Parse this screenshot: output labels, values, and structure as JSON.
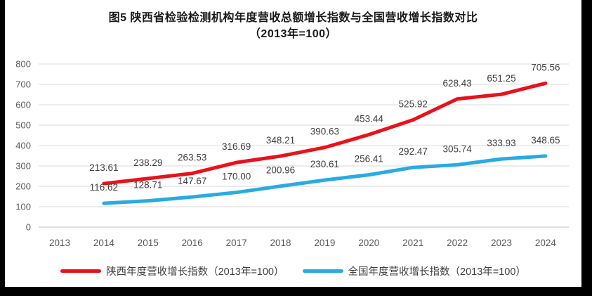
{
  "title": {
    "line1": "图5  陕西省检验检测机构年度营收总额增长指数与全国营收增长指数对比",
    "line2": "（2013年=100）"
  },
  "chart_data": {
    "type": "line",
    "title": "图5 陕西省检验检测机构年度营收总额增长指数与全国营收增长指数对比（2013年=100）",
    "categories": [
      "2013",
      "2014",
      "2015",
      "2016",
      "2017",
      "2018",
      "2019",
      "2020",
      "2021",
      "2022",
      "2023",
      "2024"
    ],
    "series": [
      {
        "name": "陕西年度营收增长指数（2013年=100）",
        "color": "#e8121a",
        "start_index": 1,
        "values": [
          213.61,
          238.29,
          263.53,
          316.69,
          348.21,
          390.63,
          453.44,
          525.92,
          628.43,
          651.25,
          705.56
        ],
        "labels": [
          "213.61",
          "238.29",
          "263.53",
          "316.69",
          "348.21",
          "390.63",
          "453.44",
          "525.92",
          "628.43",
          "651.25",
          "705.56"
        ]
      },
      {
        "name": "全国年度营收增长指数（2013年=100）",
        "color": "#29abe2",
        "start_index": 1,
        "values": [
          116.62,
          128.71,
          147.67,
          170.0,
          200.96,
          230.61,
          256.41,
          292.47,
          305.74,
          333.93,
          348.65
        ],
        "labels": [
          "116.62",
          "128.71",
          "147.67",
          "170.00",
          "200.96",
          "230.61",
          "256.41",
          "292.47",
          "305.74",
          "333.93",
          "348.65"
        ]
      }
    ],
    "xlabel": "",
    "ylabel": "",
    "ylim": [
      0,
      800
    ],
    "ytick_step": 100,
    "grid": true,
    "legend_position": "bottom",
    "colors": {
      "grid_line": "#d9d9d9",
      "zero_line": "#bfbfbf",
      "tick_label": "#595959",
      "data_label": "#404040",
      "title_text": "#1a1a1a",
      "frame": "#000000"
    }
  }
}
